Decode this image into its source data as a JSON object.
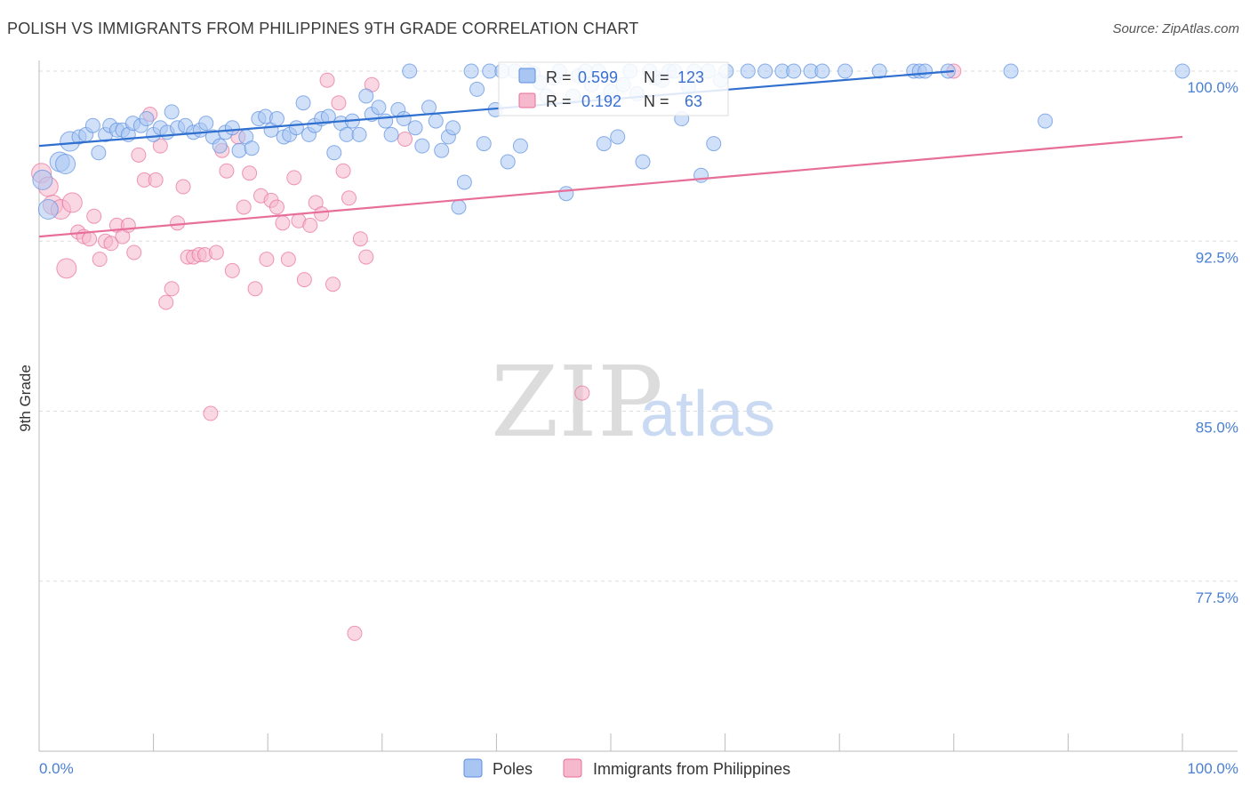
{
  "title": "POLISH VS IMMIGRANTS FROM PHILIPPINES 9TH GRADE CORRELATION CHART",
  "source": "Source: ZipAtlas.com",
  "watermark": {
    "zip": "ZIP",
    "atlas": "atlas"
  },
  "colors": {
    "poles": "#5b8fe0",
    "poles_fill": "#a9c6f3",
    "philippines": "#e86e9a",
    "philippines_fill": "#f5b8cc",
    "tick": "#4a7fd4",
    "grid": "#dddddd"
  },
  "legend_box": {
    "rows": [
      {
        "r_label": "R =",
        "r_value": "0.599",
        "n_label": "N =",
        "n_value": "123"
      },
      {
        "r_label": "R =",
        "r_value": "0.192",
        "n_label": "N =",
        "n_value": "63"
      }
    ]
  },
  "chart_data": {
    "type": "scatter",
    "title": "POLISH VS IMMIGRANTS FROM PHILIPPINES 9TH GRADE CORRELATION CHART",
    "xlabel": "",
    "ylabel": "9th Grade",
    "xlim": [
      0,
      100
    ],
    "ylim": [
      70.5,
      100.8
    ],
    "x_tick_labels": [
      "0.0%",
      "100.0%"
    ],
    "y_ticks": [
      77.5,
      85.0,
      92.5,
      100.0
    ],
    "y_tick_labels": [
      "77.5%",
      "85.0%",
      "92.5%",
      "100.0%"
    ],
    "grid": true,
    "legend": [
      "Poles",
      "Immigrants from Philippines"
    ],
    "legend_position": "bottom",
    "series": [
      {
        "name": "Poles",
        "R": 0.599,
        "N": 123,
        "trend": {
          "x": [
            0,
            80
          ],
          "y": [
            96.7,
            100.0
          ]
        },
        "points": [
          [
            0.3,
            95.2
          ],
          [
            0.8,
            93.9
          ],
          [
            1.8,
            96.0
          ],
          [
            2.3,
            95.9
          ],
          [
            2.7,
            96.9
          ],
          [
            3.5,
            97.1
          ],
          [
            4.1,
            97.2
          ],
          [
            4.7,
            97.6
          ],
          [
            5.2,
            96.4
          ],
          [
            5.8,
            97.2
          ],
          [
            6.2,
            97.6
          ],
          [
            6.8,
            97.4
          ],
          [
            7.3,
            97.4
          ],
          [
            7.8,
            97.2
          ],
          [
            8.2,
            97.7
          ],
          [
            8.9,
            97.6
          ],
          [
            9.4,
            97.9
          ],
          [
            10.0,
            97.2
          ],
          [
            10.6,
            97.5
          ],
          [
            11.2,
            97.3
          ],
          [
            11.6,
            98.2
          ],
          [
            12.1,
            97.5
          ],
          [
            12.8,
            97.6
          ],
          [
            13.5,
            97.3
          ],
          [
            14.1,
            97.4
          ],
          [
            14.6,
            97.7
          ],
          [
            15.2,
            97.1
          ],
          [
            15.8,
            96.7
          ],
          [
            16.3,
            97.3
          ],
          [
            16.9,
            97.5
          ],
          [
            17.5,
            96.5
          ],
          [
            18.1,
            97.1
          ],
          [
            18.6,
            96.6
          ],
          [
            19.2,
            97.9
          ],
          [
            19.8,
            98.0
          ],
          [
            20.3,
            97.4
          ],
          [
            20.8,
            97.9
          ],
          [
            21.4,
            97.1
          ],
          [
            21.9,
            97.2
          ],
          [
            22.5,
            97.5
          ],
          [
            23.1,
            98.6
          ],
          [
            23.6,
            97.2
          ],
          [
            24.1,
            97.6
          ],
          [
            24.7,
            97.9
          ],
          [
            25.3,
            98.0
          ],
          [
            25.8,
            96.4
          ],
          [
            26.4,
            97.7
          ],
          [
            26.9,
            97.2
          ],
          [
            27.4,
            97.8
          ],
          [
            28.0,
            97.2
          ],
          [
            28.6,
            98.9
          ],
          [
            29.1,
            98.1
          ],
          [
            29.7,
            98.4
          ],
          [
            30.3,
            97.8
          ],
          [
            30.8,
            97.2
          ],
          [
            31.4,
            98.3
          ],
          [
            31.9,
            97.9
          ],
          [
            32.4,
            100.0
          ],
          [
            32.9,
            97.5
          ],
          [
            33.5,
            96.7
          ],
          [
            34.1,
            98.4
          ],
          [
            34.7,
            97.8
          ],
          [
            35.2,
            96.5
          ],
          [
            35.8,
            97.1
          ],
          [
            36.2,
            97.5
          ],
          [
            36.7,
            94.0
          ],
          [
            37.2,
            95.1
          ],
          [
            37.8,
            100.0
          ],
          [
            38.3,
            99.2
          ],
          [
            38.9,
            96.8
          ],
          [
            39.4,
            100.0
          ],
          [
            39.9,
            98.3
          ],
          [
            40.5,
            100.0
          ],
          [
            41.0,
            96.0
          ],
          [
            41.6,
            100.0
          ],
          [
            42.1,
            96.7
          ],
          [
            42.7,
            100.0
          ],
          [
            43.2,
            99.9
          ],
          [
            43.8,
            99.5
          ],
          [
            44.4,
            98.9
          ],
          [
            45.0,
            99.7
          ],
          [
            45.5,
            100.0
          ],
          [
            46.1,
            94.6
          ],
          [
            46.7,
            98.9
          ],
          [
            47.2,
            99.8
          ],
          [
            47.8,
            100.0
          ],
          [
            48.3,
            99.4
          ],
          [
            48.9,
            100.0
          ],
          [
            49.4,
            96.8
          ],
          [
            50.0,
            99.1
          ],
          [
            50.6,
            97.1
          ],
          [
            51.1,
            99.4
          ],
          [
            51.7,
            100.0
          ],
          [
            52.3,
            99.0
          ],
          [
            52.8,
            96.0
          ],
          [
            53.4,
            100.0
          ],
          [
            53.9,
            99.7
          ],
          [
            54.5,
            99.6
          ],
          [
            55.1,
            100.0
          ],
          [
            55.6,
            100.0
          ],
          [
            56.2,
            97.9
          ],
          [
            56.8,
            99.3
          ],
          [
            57.3,
            100.0
          ],
          [
            57.9,
            95.4
          ],
          [
            58.5,
            100.0
          ],
          [
            59.0,
            96.8
          ],
          [
            59.6,
            99.6
          ],
          [
            60.1,
            100.0
          ],
          [
            62.0,
            100.0
          ],
          [
            63.5,
            100.0
          ],
          [
            65.0,
            100.0
          ],
          [
            66.0,
            100.0
          ],
          [
            67.5,
            100.0
          ],
          [
            68.5,
            100.0
          ],
          [
            70.5,
            100.0
          ],
          [
            73.5,
            100.0
          ],
          [
            76.5,
            100.0
          ],
          [
            77.0,
            100.0
          ],
          [
            77.5,
            100.0
          ],
          [
            79.5,
            100.0
          ],
          [
            85.0,
            100.0
          ],
          [
            88.0,
            97.8
          ],
          [
            100.0,
            100.0
          ]
        ]
      },
      {
        "name": "Immigrants from Philippines",
        "R": 0.192,
        "N": 63,
        "trend": {
          "x": [
            0,
            100
          ],
          "y": [
            92.7,
            97.1
          ]
        },
        "points": [
          [
            0.2,
            95.5
          ],
          [
            0.8,
            94.9
          ],
          [
            1.2,
            94.1
          ],
          [
            1.9,
            93.9
          ],
          [
            2.4,
            91.3
          ],
          [
            2.9,
            94.2
          ],
          [
            3.4,
            92.9
          ],
          [
            3.9,
            92.7
          ],
          [
            4.4,
            92.6
          ],
          [
            4.8,
            93.6
          ],
          [
            5.3,
            91.7
          ],
          [
            5.8,
            92.5
          ],
          [
            6.3,
            92.4
          ],
          [
            6.8,
            93.2
          ],
          [
            7.3,
            92.7
          ],
          [
            7.8,
            93.2
          ],
          [
            8.3,
            92.0
          ],
          [
            8.7,
            96.3
          ],
          [
            9.2,
            95.2
          ],
          [
            9.7,
            98.1
          ],
          [
            10.2,
            95.2
          ],
          [
            10.6,
            96.7
          ],
          [
            11.1,
            89.8
          ],
          [
            11.6,
            90.4
          ],
          [
            12.1,
            93.3
          ],
          [
            12.6,
            94.9
          ],
          [
            13.0,
            91.8
          ],
          [
            13.5,
            91.8
          ],
          [
            14.0,
            91.9
          ],
          [
            14.5,
            91.9
          ],
          [
            15.0,
            84.9
          ],
          [
            15.5,
            92.0
          ],
          [
            16.0,
            96.5
          ],
          [
            16.4,
            95.6
          ],
          [
            16.9,
            91.2
          ],
          [
            17.4,
            97.1
          ],
          [
            17.9,
            94.0
          ],
          [
            18.4,
            95.5
          ],
          [
            18.9,
            90.4
          ],
          [
            19.4,
            94.5
          ],
          [
            19.9,
            91.7
          ],
          [
            20.3,
            94.3
          ],
          [
            20.8,
            94.0
          ],
          [
            21.3,
            93.3
          ],
          [
            21.8,
            91.7
          ],
          [
            22.3,
            95.3
          ],
          [
            22.7,
            93.4
          ],
          [
            23.2,
            90.8
          ],
          [
            23.7,
            93.2
          ],
          [
            24.2,
            94.2
          ],
          [
            24.7,
            93.7
          ],
          [
            25.2,
            99.6
          ],
          [
            25.7,
            90.6
          ],
          [
            26.2,
            98.6
          ],
          [
            26.6,
            95.6
          ],
          [
            27.1,
            94.4
          ],
          [
            27.6,
            75.2
          ],
          [
            28.1,
            92.6
          ],
          [
            28.6,
            91.8
          ],
          [
            29.1,
            99.4
          ],
          [
            32.0,
            97.0
          ],
          [
            47.5,
            85.8
          ],
          [
            80.0,
            100.0
          ]
        ]
      }
    ]
  }
}
